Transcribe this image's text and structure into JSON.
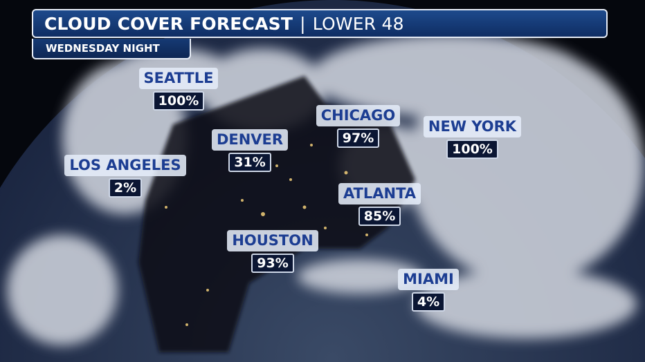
{
  "header": {
    "title": "CLOUD COVER FORECAST",
    "separator": "|",
    "region": "LOWER 48",
    "subtitle": "WEDNESDAY NIGHT"
  },
  "colors": {
    "title_bg": "#1d4a8c",
    "label_text": "#1c3d92",
    "value_bg": "#0b1633"
  },
  "cities": [
    {
      "name": "SEATTLE",
      "value": "100%"
    },
    {
      "name": "DENVER",
      "value": "31%"
    },
    {
      "name": "LOS ANGELES",
      "value": "2%"
    },
    {
      "name": "CHICAGO",
      "value": "97%"
    },
    {
      "name": "NEW YORK",
      "value": "100%"
    },
    {
      "name": "ATLANTA",
      "value": "85%"
    },
    {
      "name": "HOUSTON",
      "value": "93%"
    },
    {
      "name": "MIAMI",
      "value": "4%"
    }
  ]
}
